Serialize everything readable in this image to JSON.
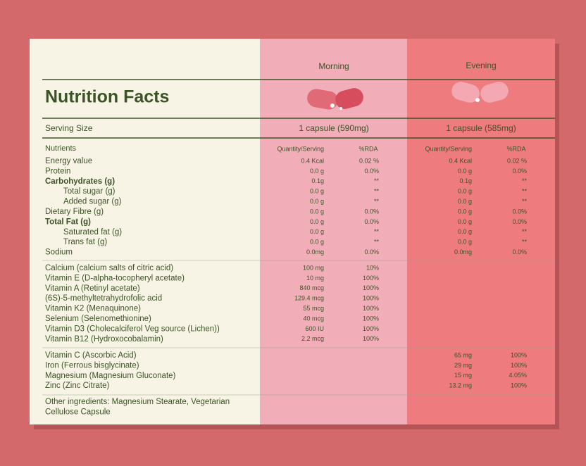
{
  "header": {
    "title": "Nutrition Facts",
    "morning": "Morning",
    "evening": "Evening"
  },
  "serving": {
    "label": "Serving Size",
    "morning": "1 capsule (590mg)",
    "evening": "1 capsule (585mg)"
  },
  "nutrients_header": {
    "label": "Nutrients",
    "morning": [
      "Quantity/Serving",
      "%RDA"
    ],
    "evening": [
      "Quantity/Serving",
      "%RDA"
    ]
  },
  "sections": [
    {
      "rows": [
        {
          "label": "Energy value",
          "morning": [
            "0.4 Kcal",
            "0.02 %"
          ],
          "evening": [
            "0.4 Kcal",
            "0.02 %"
          ]
        },
        {
          "label": "Protein",
          "morning": [
            "0.0 g",
            "0.0%"
          ],
          "evening": [
            "0.0 g",
            "0.0%"
          ]
        },
        {
          "label": "Carbohydrates (g)",
          "bold": true,
          "morning": [
            "0.1g",
            "**"
          ],
          "evening": [
            "0.1g",
            "**"
          ]
        },
        {
          "label": "Total sugar (g)",
          "indent": true,
          "morning": [
            "0.0 g",
            "**"
          ],
          "evening": [
            "0.0 g",
            "**"
          ]
        },
        {
          "label": "Added sugar (g)",
          "indent": true,
          "morning": [
            "0.0 g",
            "**"
          ],
          "evening": [
            "0.0 g",
            "**"
          ]
        },
        {
          "label": "Dietary Fibre (g)",
          "morning": [
            "0.0 g",
            "0.0%"
          ],
          "evening": [
            "0.0 g",
            "0.0%"
          ]
        },
        {
          "label": "Total Fat (g)",
          "bold": true,
          "morning": [
            "0.0 g",
            "0.0%"
          ],
          "evening": [
            "0.0 g",
            "0.0%"
          ]
        },
        {
          "label": "Saturated fat (g)",
          "indent": true,
          "morning": [
            "0.0 g",
            "**"
          ],
          "evening": [
            "0.0 g",
            "**"
          ]
        },
        {
          "label": "Trans fat (g)",
          "indent": true,
          "morning": [
            "0.0 g",
            "**"
          ],
          "evening": [
            "0.0 g",
            "**"
          ]
        },
        {
          "label": "Sodium",
          "morning": [
            "0.0mg",
            "0.0%"
          ],
          "evening": [
            "0.0mg",
            "0.0%"
          ]
        }
      ]
    },
    {
      "rows": [
        {
          "label": "Calcium (calcium salts of citric acid)",
          "morning": [
            "100 mg",
            "10%"
          ]
        },
        {
          "label": "Vitamin E (D-alpha-tocopheryl acetate)",
          "morning": [
            "10 mg",
            "100%"
          ]
        },
        {
          "label": "Vitamin A (Retinyl acetate)",
          "morning": [
            "840 mcg",
            "100%"
          ]
        },
        {
          "label": "(6S)-5-methyltetrahydrofolic acid",
          "morning": [
            "129.4 mcg",
            "100%"
          ]
        },
        {
          "label": "Vitamin K2 (Menaquinone)",
          "morning": [
            "55 mcg",
            "100%"
          ]
        },
        {
          "label": "Selenium  (Selenomethionine)",
          "morning": [
            "40 mcg",
            "100%"
          ]
        },
        {
          "label": "Vitamin D3 (Cholecalciferol Veg source (Lichen))",
          "morning": [
            "600 IU",
            "100%"
          ]
        },
        {
          "label": "Vitamin B12 (Hydroxocobalamin)",
          "morning": [
            "2.2 mcg",
            "100%"
          ]
        }
      ]
    },
    {
      "rows": [
        {
          "label": "Vitamin C (Ascorbic Acid)",
          "evening": [
            "65 mg",
            "100%"
          ]
        },
        {
          "label": "Iron (Ferrous bisglycinate)",
          "evening": [
            "29 mg",
            "100%"
          ]
        },
        {
          "label": "Magnesium (Magnesium Gluconate)",
          "evening": [
            "15 mg",
            "4.05%"
          ]
        },
        {
          "label": "Zinc (Zinc Citrate)",
          "evening": [
            "13.2 mg",
            "100%"
          ]
        }
      ]
    }
  ],
  "other_ingredients": [
    "Other ingredients: Magnesium Stearate, Vegetarian",
    "Cellulose Capsule"
  ]
}
